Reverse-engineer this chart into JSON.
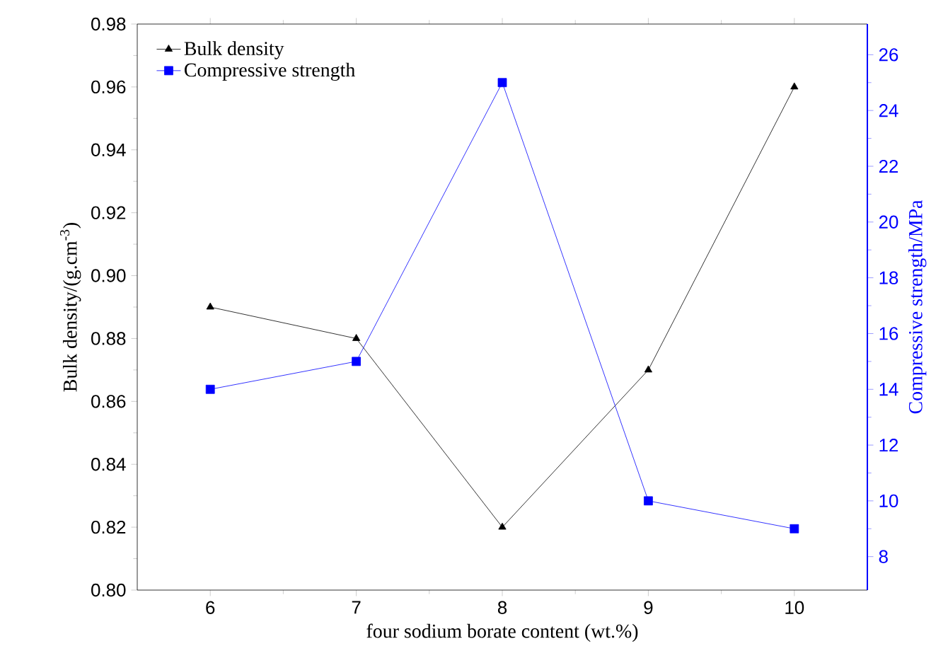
{
  "chart_data": {
    "type": "line",
    "xlabel": "four sodium borate content (wt.%)",
    "ylabel": "Bulk density/(g.cm$^{-3}$)",
    "y2label": "Compressive strength/MPa",
    "x": [
      6,
      7,
      8,
      9,
      10
    ],
    "series": [
      {
        "name": "Bulk density",
        "color": "#000000",
        "marker": "triangle",
        "values": [
          0.89,
          0.88,
          0.82,
          0.87,
          0.96
        ]
      },
      {
        "name": "Compressive strength",
        "color": "#0000ff",
        "marker": "square",
        "axis": "y2",
        "values": [
          14,
          15,
          25,
          10,
          9
        ]
      }
    ],
    "xlim": [
      5.5,
      10.5
    ],
    "xticks": [
      6,
      7,
      8,
      9,
      10
    ],
    "ylim": [
      0.8,
      0.98
    ],
    "yticks": [
      {
        "value": 0.8,
        "label": "0.80"
      },
      {
        "value": 0.82,
        "label": "0.82"
      },
      {
        "value": 0.84,
        "label": "0.84"
      },
      {
        "value": 0.86,
        "label": "0.86"
      },
      {
        "value": 0.88,
        "label": "0.88"
      },
      {
        "value": 0.9,
        "label": "0.90"
      },
      {
        "value": 0.92,
        "label": "0.92"
      },
      {
        "value": 0.94,
        "label": "0.94"
      },
      {
        "value": 0.96,
        "label": "0.96"
      },
      {
        "value": 0.98,
        "label": "0.98"
      }
    ],
    "y2lim": [
      6.8,
      27.1
    ],
    "y2ticks": [
      8,
      10,
      12,
      14,
      16,
      18,
      20,
      22,
      24,
      26
    ],
    "legend": "top left",
    "grid": false
  }
}
